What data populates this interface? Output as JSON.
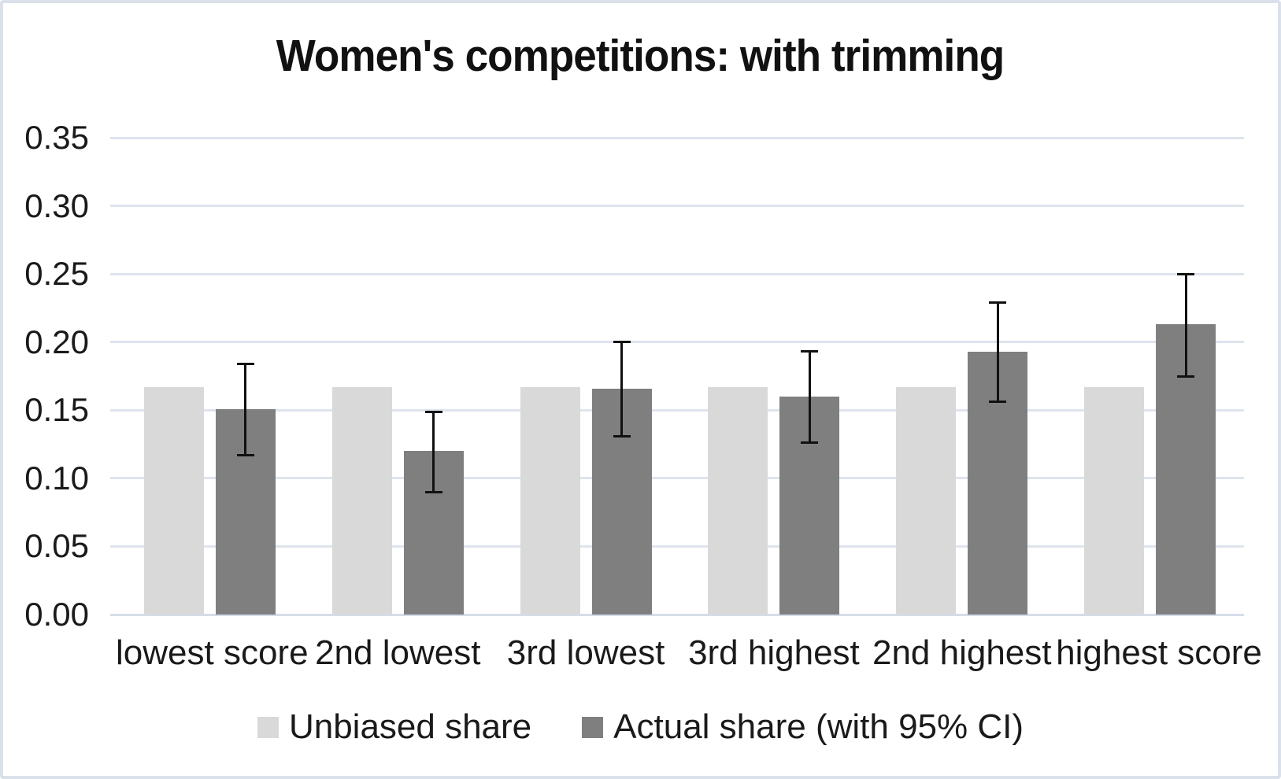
{
  "title": "Women's competitions: with trimming",
  "chart_data": {
    "type": "bar",
    "title": "Women's competitions: with trimming",
    "categories": [
      "lowest score",
      "2nd lowest",
      "3rd lowest",
      "3rd highest",
      "2nd highest",
      "highest score"
    ],
    "series": [
      {
        "name": "Unbiased share",
        "color": "#d9d9d9",
        "values": [
          0.167,
          0.167,
          0.167,
          0.167,
          0.167,
          0.167
        ]
      },
      {
        "name": "Actual share (with 95% CI)",
        "color": "#7f7f7f",
        "values": [
          0.151,
          0.12,
          0.166,
          0.16,
          0.193,
          0.213
        ],
        "ci_low": [
          0.117,
          0.09,
          0.131,
          0.126,
          0.156,
          0.175
        ],
        "ci_high": [
          0.184,
          0.149,
          0.2,
          0.193,
          0.229,
          0.25
        ]
      }
    ],
    "ylim": [
      0,
      0.35
    ],
    "ytick_step": 0.05,
    "ytick_labels": [
      "0.00",
      "0.05",
      "0.10",
      "0.15",
      "0.20",
      "0.25",
      "0.30",
      "0.35"
    ],
    "grid": true,
    "legend_position": "bottom",
    "xlabel": "",
    "ylabel": "",
    "error_bar_color": "#111111",
    "gridline_color": "#dee4ee",
    "text_color": "#1a1a1a"
  }
}
